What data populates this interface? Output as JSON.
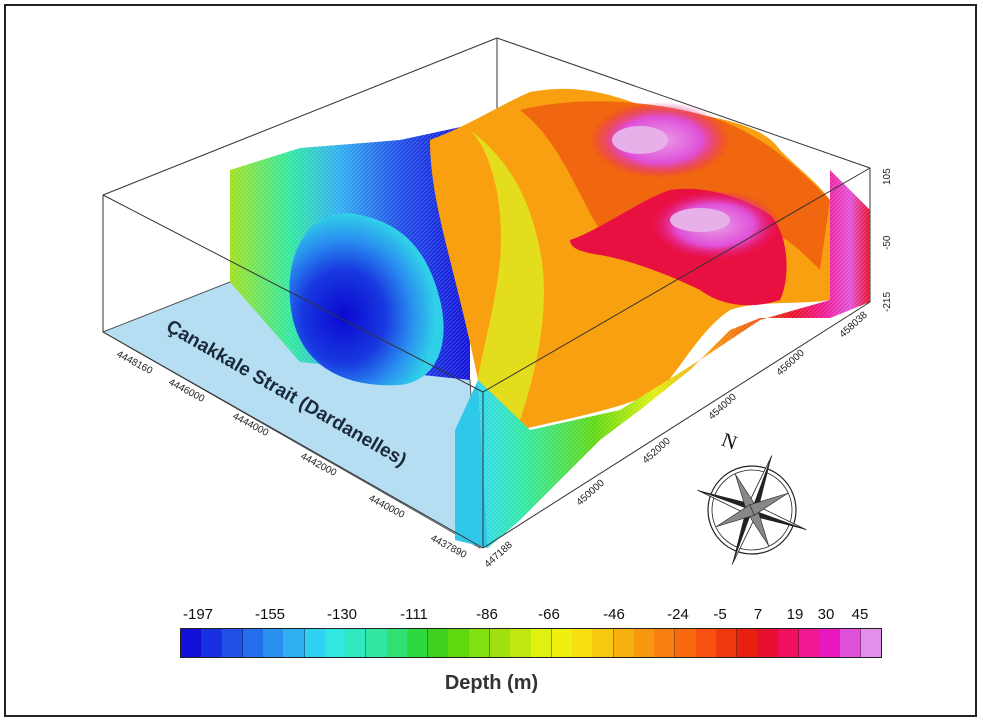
{
  "figure": {
    "strait_label": "Çanakkale Strait (Dardanelles)",
    "axis_left_ticks": [
      "4448160",
      "4446000",
      "4444000",
      "4442000",
      "4440000",
      "4437890"
    ],
    "axis_right_ticks": [
      "447188",
      "450000",
      "452000",
      "454000",
      "456000",
      "458038"
    ],
    "axis_vertical_ticks": [
      "105",
      "-50",
      "-215"
    ],
    "compass_label": "N"
  },
  "legend": {
    "title": "Depth (m)",
    "labels": [
      "-197",
      "-155",
      "-130",
      "-111",
      "-86",
      "-66",
      "-46",
      "-24",
      "-5",
      "7",
      "19",
      "30",
      "45"
    ],
    "swatches": [
      "#1010d8",
      "#1830e0",
      "#2050e8",
      "#2470ec",
      "#2a90f0",
      "#30b0f0",
      "#30d0f0",
      "#30e8e0",
      "#30e8c0",
      "#30e8a0",
      "#30e070",
      "#30d840",
      "#40d020",
      "#60d810",
      "#80e010",
      "#a0e010",
      "#c0e810",
      "#e0f010",
      "#f0f010",
      "#f8e010",
      "#f8c810",
      "#f8b010",
      "#f89810",
      "#f88010",
      "#f86810",
      "#f85010",
      "#f03810",
      "#e82010",
      "#e81030",
      "#f01060",
      "#f01890",
      "#e818c0",
      "#e050d8",
      "#e090e8"
    ]
  }
}
